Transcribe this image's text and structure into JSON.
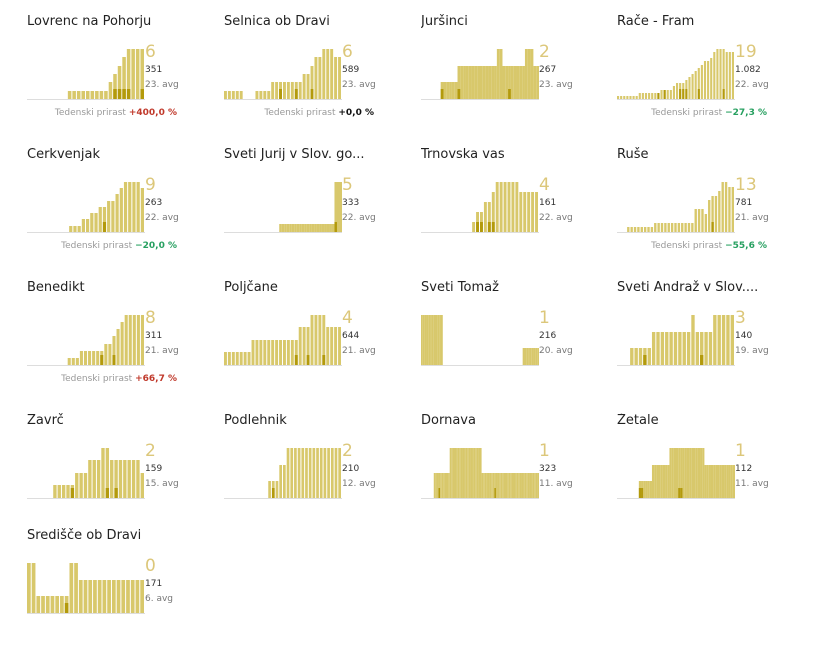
{
  "colors": {
    "bar_light": "#d8c86b",
    "bar_dark": "#b39a0c",
    "big_number": "#dcc77a",
    "growth_up": "#c0392b",
    "growth_down": "#27a060",
    "growth_zero": "#111111",
    "baseline": "#dddddd"
  },
  "growth_label": "Tedenski prirast",
  "chart_data": [
    {
      "type": "bar",
      "title": "Lovrenc na Pohorju",
      "current": "6",
      "total": "351",
      "rank": "23. avg",
      "growth": "+400,0 %",
      "growth_dir": "up",
      "values": [
        0,
        0,
        0,
        0,
        0,
        0,
        0,
        0,
        0,
        1,
        1,
        1,
        1,
        1,
        1,
        1,
        1,
        1,
        2,
        3,
        4,
        5,
        6,
        6,
        6,
        6
      ],
      "dark": [
        0,
        0,
        0,
        0,
        0,
        0,
        0,
        0,
        0,
        0,
        0,
        0,
        0,
        0,
        0,
        0,
        0,
        0,
        0,
        1,
        1,
        1,
        1,
        0,
        0,
        1
      ]
    },
    {
      "type": "bar",
      "title": "Selnica ob Dravi",
      "current": "6",
      "total": "589",
      "rank": "23. avg",
      "growth": "+0,0 %",
      "growth_dir": "zero",
      "values": [
        1,
        1,
        1,
        1,
        1,
        0,
        0,
        0,
        1,
        1,
        1,
        1,
        2,
        2,
        2,
        2,
        2,
        2,
        2,
        2,
        3,
        3,
        4,
        5,
        5,
        6,
        6,
        6,
        5,
        5
      ],
      "dark": [
        0,
        0,
        0,
        0,
        0,
        0,
        0,
        0,
        0,
        0,
        0,
        0,
        0,
        0,
        1,
        0,
        0,
        0,
        1,
        0,
        0,
        0,
        1,
        0,
        0,
        0,
        0,
        0,
        0,
        0
      ]
    },
    {
      "type": "bar",
      "title": "Juršinci",
      "current": "2",
      "total": "267",
      "rank": "23. avg",
      "growth": "",
      "growth_dir": "",
      "values": [
        0,
        0,
        0,
        0,
        0,
        0,
        0,
        1,
        1,
        1,
        1,
        1,
        1,
        2,
        2,
        2,
        2,
        2,
        2,
        2,
        2,
        2,
        2,
        2,
        2,
        2,
        2,
        3,
        3,
        2,
        2,
        2,
        2,
        2,
        2,
        2,
        2,
        3,
        3,
        3,
        2,
        2
      ],
      "dark": [
        0,
        0,
        0,
        0,
        0,
        0,
        0,
        1,
        0,
        0,
        0,
        0,
        0,
        1,
        0,
        0,
        0,
        0,
        0,
        0,
        0,
        0,
        0,
        0,
        0,
        0,
        0,
        0,
        0,
        0,
        0,
        1,
        0,
        0,
        0,
        0,
        0,
        0,
        0,
        0,
        0,
        0
      ]
    },
    {
      "type": "bar",
      "title": "Rače - Fram",
      "current": "19",
      "total": "1.082",
      "rank": "22. avg",
      "growth": "−27,3 %",
      "growth_dir": "down",
      "values": [
        1,
        1,
        1,
        1,
        1,
        1,
        1,
        2,
        2,
        2,
        2,
        2,
        2,
        2,
        3,
        3,
        3,
        3,
        4,
        5,
        5,
        5,
        6,
        7,
        8,
        9,
        10,
        11,
        12,
        12,
        13,
        15,
        16,
        16,
        16,
        15,
        15,
        15
      ],
      "dark": [
        0,
        0,
        0,
        0,
        0,
        0,
        0,
        0,
        0,
        0,
        0,
        0,
        0,
        1,
        0,
        1,
        0,
        0,
        0,
        0,
        1,
        1,
        1,
        0,
        0,
        0,
        1,
        0,
        0,
        0,
        0,
        0,
        0,
        0,
        1,
        0,
        0,
        0
      ]
    },
    {
      "type": "bar",
      "title": "Cerkvenjak",
      "current": "9",
      "total": "263",
      "rank": "22. avg",
      "growth": "−20,0 %",
      "growth_dir": "down",
      "values": [
        0,
        0,
        0,
        0,
        0,
        0,
        0,
        0,
        0,
        0,
        1,
        1,
        1,
        2,
        2,
        3,
        3,
        4,
        4,
        5,
        5,
        6,
        7,
        8,
        8,
        8,
        8,
        7
      ],
      "dark": [
        0,
        0,
        0,
        0,
        0,
        0,
        0,
        0,
        0,
        0,
        0,
        0,
        0,
        0,
        0,
        0,
        0,
        0,
        1,
        0,
        0,
        0,
        0,
        0,
        0,
        0,
        0,
        0
      ]
    },
    {
      "type": "bar",
      "title": "Sveti Jurij v Slov. go...",
      "current": "5",
      "total": "333",
      "rank": "22. avg",
      "growth": "",
      "growth_dir": "",
      "values": [
        0,
        0,
        0,
        0,
        0,
        0,
        0,
        0,
        0,
        0,
        0,
        0,
        0,
        0,
        0,
        0,
        0,
        0,
        0,
        0,
        0,
        0,
        1,
        1,
        1,
        1,
        1,
        1,
        1,
        1,
        1,
        1,
        1,
        1,
        1,
        1,
        1,
        1,
        1,
        1,
        1,
        1,
        1,
        1,
        6,
        6,
        6
      ],
      "dark": [
        0,
        0,
        0,
        0,
        0,
        0,
        0,
        0,
        0,
        0,
        0,
        0,
        0,
        0,
        0,
        0,
        0,
        0,
        0,
        0,
        0,
        0,
        0,
        0,
        0,
        0,
        0,
        0,
        0,
        0,
        0,
        0,
        0,
        0,
        0,
        0,
        0,
        0,
        0,
        0,
        0,
        0,
        0,
        0,
        1,
        0,
        0
      ]
    },
    {
      "type": "bar",
      "title": "Trnovska vas",
      "current": "4",
      "total": "161",
      "rank": "22. avg",
      "growth": "",
      "growth_dir": "",
      "values": [
        0,
        0,
        0,
        0,
        0,
        0,
        0,
        0,
        0,
        0,
        0,
        0,
        0,
        1,
        2,
        2,
        3,
        3,
        4,
        5,
        5,
        5,
        5,
        5,
        5,
        4,
        4,
        4,
        4,
        4
      ],
      "dark": [
        0,
        0,
        0,
        0,
        0,
        0,
        0,
        0,
        0,
        0,
        0,
        0,
        0,
        0,
        1,
        1,
        0,
        1,
        1,
        0,
        0,
        0,
        0,
        0,
        0,
        0,
        0,
        0,
        0,
        0
      ]
    },
    {
      "type": "bar",
      "title": "Ruše",
      "current": "13",
      "total": "781",
      "rank": "21. avg",
      "growth": "−55,6 %",
      "growth_dir": "down",
      "values": [
        0,
        0,
        0,
        1,
        1,
        1,
        1,
        1,
        1,
        1,
        1,
        2,
        2,
        2,
        2,
        2,
        2,
        2,
        2,
        2,
        2,
        2,
        2,
        5,
        5,
        5,
        4,
        7,
        8,
        8,
        9,
        11,
        11,
        10,
        10
      ],
      "dark": [
        0,
        0,
        0,
        0,
        0,
        0,
        0,
        0,
        0,
        0,
        0,
        0,
        0,
        0,
        0,
        0,
        0,
        0,
        0,
        0,
        0,
        0,
        0,
        0,
        0,
        0,
        0,
        0,
        1,
        0,
        0,
        0,
        0,
        0,
        0
      ]
    },
    {
      "type": "bar",
      "title": "Benedikt",
      "current": "8",
      "total": "311",
      "rank": "21. avg",
      "growth": "+66,7 %",
      "growth_dir": "up",
      "values": [
        0,
        0,
        0,
        0,
        0,
        0,
        0,
        0,
        0,
        0,
        1,
        1,
        1,
        2,
        2,
        2,
        2,
        2,
        2,
        3,
        3,
        4,
        5,
        6,
        7,
        7,
        7,
        7,
        7
      ],
      "dark": [
        0,
        0,
        0,
        0,
        0,
        0,
        0,
        0,
        0,
        0,
        0,
        0,
        0,
        0,
        0,
        0,
        0,
        0,
        1,
        0,
        0,
        1,
        0,
        0,
        0,
        0,
        0,
        0,
        0
      ]
    },
    {
      "type": "bar",
      "title": "Poljčane",
      "current": "4",
      "total": "644",
      "rank": "21. avg",
      "growth": "",
      "growth_dir": "",
      "values": [
        1,
        1,
        1,
        1,
        1,
        1,
        1,
        2,
        2,
        2,
        2,
        2,
        2,
        2,
        2,
        2,
        2,
        2,
        2,
        3,
        3,
        3,
        4,
        4,
        4,
        4,
        3,
        3,
        3,
        3
      ],
      "dark": [
        0,
        0,
        0,
        0,
        0,
        0,
        0,
        0,
        0,
        0,
        0,
        0,
        0,
        0,
        0,
        0,
        0,
        0,
        1,
        0,
        0,
        1,
        0,
        0,
        0,
        1,
        0,
        0,
        0,
        0
      ]
    },
    {
      "type": "bar",
      "title": "Sveti Tomaž",
      "current": "1",
      "total": "216",
      "rank": "20. avg",
      "growth": "",
      "growth_dir": "",
      "values": [
        3,
        3,
        3,
        3,
        3,
        3,
        3,
        3,
        3,
        3,
        3,
        3,
        0,
        0,
        0,
        0,
        0,
        0,
        0,
        0,
        0,
        0,
        0,
        0,
        0,
        0,
        0,
        0,
        0,
        0,
        0,
        0,
        0,
        0,
        0,
        0,
        0,
        0,
        0,
        0,
        0,
        0,
        0,
        0,
        0,
        0,
        0,
        0,
        0,
        0,
        0,
        0,
        0,
        0,
        0,
        0,
        1,
        1,
        1,
        1,
        1,
        1,
        1,
        1,
        1
      ],
      "dark": []
    },
    {
      "type": "bar",
      "title": "Sveti Andraž v Slov....",
      "current": "3",
      "total": "140",
      "rank": "19. avg",
      "growth": "",
      "growth_dir": "",
      "values": [
        0,
        0,
        0,
        1,
        1,
        1,
        1,
        1,
        2,
        2,
        2,
        2,
        2,
        2,
        2,
        2,
        2,
        3,
        2,
        2,
        2,
        2,
        3,
        3,
        3,
        3,
        3
      ],
      "dark": [
        0,
        0,
        0,
        0,
        0,
        0,
        1,
        0,
        0,
        0,
        0,
        0,
        0,
        0,
        0,
        0,
        0,
        0,
        0,
        1,
        0,
        0,
        0,
        0,
        0,
        0,
        0
      ]
    },
    {
      "type": "bar",
      "title": "Zavrč",
      "current": "2",
      "total": "159",
      "rank": "15. avg",
      "growth": "",
      "growth_dir": "",
      "values": [
        0,
        0,
        0,
        0,
        0,
        0,
        1,
        1,
        1,
        1,
        1,
        2,
        2,
        2,
        3,
        3,
        3,
        4,
        4,
        3,
        3,
        3,
        3,
        3,
        3,
        3,
        2
      ],
      "dark": [
        0,
        0,
        0,
        0,
        0,
        0,
        0,
        0,
        0,
        0,
        1,
        0,
        0,
        0,
        0,
        0,
        0,
        0,
        1,
        0,
        1,
        0,
        0,
        0,
        0,
        0,
        0
      ]
    },
    {
      "type": "bar",
      "title": "Podlehnik",
      "current": "2",
      "total": "210",
      "rank": "12. avg",
      "growth": "",
      "growth_dir": "",
      "values": [
        0,
        0,
        0,
        0,
        0,
        0,
        0,
        0,
        0,
        0,
        0,
        0,
        1,
        1,
        1,
        2,
        2,
        3,
        3,
        3,
        3,
        3,
        3,
        3,
        3,
        3,
        3,
        3,
        3,
        3,
        3,
        3
      ],
      "dark": [
        0,
        0,
        0,
        0,
        0,
        0,
        0,
        0,
        0,
        0,
        0,
        0,
        0,
        1,
        0,
        0,
        0,
        0,
        0,
        0,
        0,
        0,
        0,
        0,
        0,
        0,
        0,
        0,
        0,
        0,
        0,
        0
      ]
    },
    {
      "type": "bar",
      "title": "Dornava",
      "current": "1",
      "total": "323",
      "rank": "11. avg",
      "growth": "",
      "growth_dir": "",
      "values": [
        0,
        0,
        0,
        0,
        0,
        0,
        0,
        0,
        1,
        1,
        1,
        1,
        1,
        1,
        1,
        1,
        1,
        1,
        2,
        2,
        2,
        2,
        2,
        2,
        2,
        2,
        2,
        2,
        2,
        2,
        2,
        2,
        2,
        2,
        2,
        2,
        2,
        2,
        1,
        1,
        1,
        1,
        1,
        1,
        1,
        1,
        1,
        1,
        1,
        1,
        1,
        1,
        1,
        1,
        1,
        1,
        1,
        1,
        1,
        1,
        1,
        1,
        1,
        1,
        1,
        1,
        1,
        1,
        1,
        1,
        1,
        1,
        1,
        1
      ],
      "dark": [
        0,
        0,
        0,
        0,
        0,
        0,
        0,
        0,
        0,
        0,
        0,
        1,
        0,
        0,
        0,
        0,
        0,
        0,
        0,
        0,
        0,
        0,
        0,
        0,
        0,
        0,
        0,
        0,
        0,
        0,
        0,
        0,
        0,
        0,
        0,
        0,
        0,
        0,
        0,
        0,
        0,
        0,
        0,
        0,
        0,
        0,
        1,
        0,
        0,
        0,
        0,
        0,
        0,
        0,
        0,
        0,
        0,
        0,
        0,
        0,
        0,
        0,
        0,
        0,
        0,
        0,
        0,
        0,
        0,
        0,
        0,
        0,
        0,
        0
      ]
    },
    {
      "type": "bar",
      "title": "Žetale",
      "current": "1",
      "total": "112",
      "rank": "11. avg",
      "growth": "",
      "growth_dir": "",
      "values": [
        0,
        0,
        0,
        0,
        0,
        0,
        0,
        0,
        0,
        0,
        1,
        1,
        1,
        1,
        1,
        1,
        2,
        2,
        2,
        2,
        2,
        2,
        2,
        2,
        3,
        3,
        3,
        3,
        3,
        3,
        3,
        3,
        3,
        3,
        3,
        3,
        3,
        3,
        3,
        3,
        2,
        2,
        2,
        2,
        2,
        2,
        2,
        2,
        2,
        2,
        2,
        2,
        2,
        2
      ],
      "dark": [
        0,
        0,
        0,
        0,
        0,
        0,
        0,
        0,
        0,
        0,
        1,
        1,
        0,
        0,
        0,
        0,
        0,
        0,
        0,
        0,
        0,
        0,
        0,
        0,
        0,
        0,
        0,
        0,
        1,
        1,
        0,
        0,
        0,
        0,
        0,
        0,
        0,
        0,
        0,
        0,
        0,
        0,
        0,
        0,
        0,
        0,
        0,
        0,
        0,
        0,
        0,
        0,
        0,
        0
      ]
    },
    {
      "type": "bar",
      "title": "Središče ob Dravi",
      "current": "0",
      "total": "171",
      "rank": "6. avg",
      "growth": "",
      "growth_dir": "",
      "values": [
        3,
        3,
        1,
        1,
        1,
        1,
        1,
        1,
        1,
        3,
        3,
        2,
        2,
        2,
        2,
        2,
        2,
        2,
        2,
        2,
        2,
        2,
        2,
        2,
        2
      ],
      "dark": [
        0,
        0,
        0,
        0,
        0,
        0,
        0,
        0,
        1,
        0,
        0,
        0,
        0,
        0,
        0,
        0,
        0,
        0,
        0,
        0,
        0,
        0,
        0,
        0,
        0
      ]
    }
  ]
}
